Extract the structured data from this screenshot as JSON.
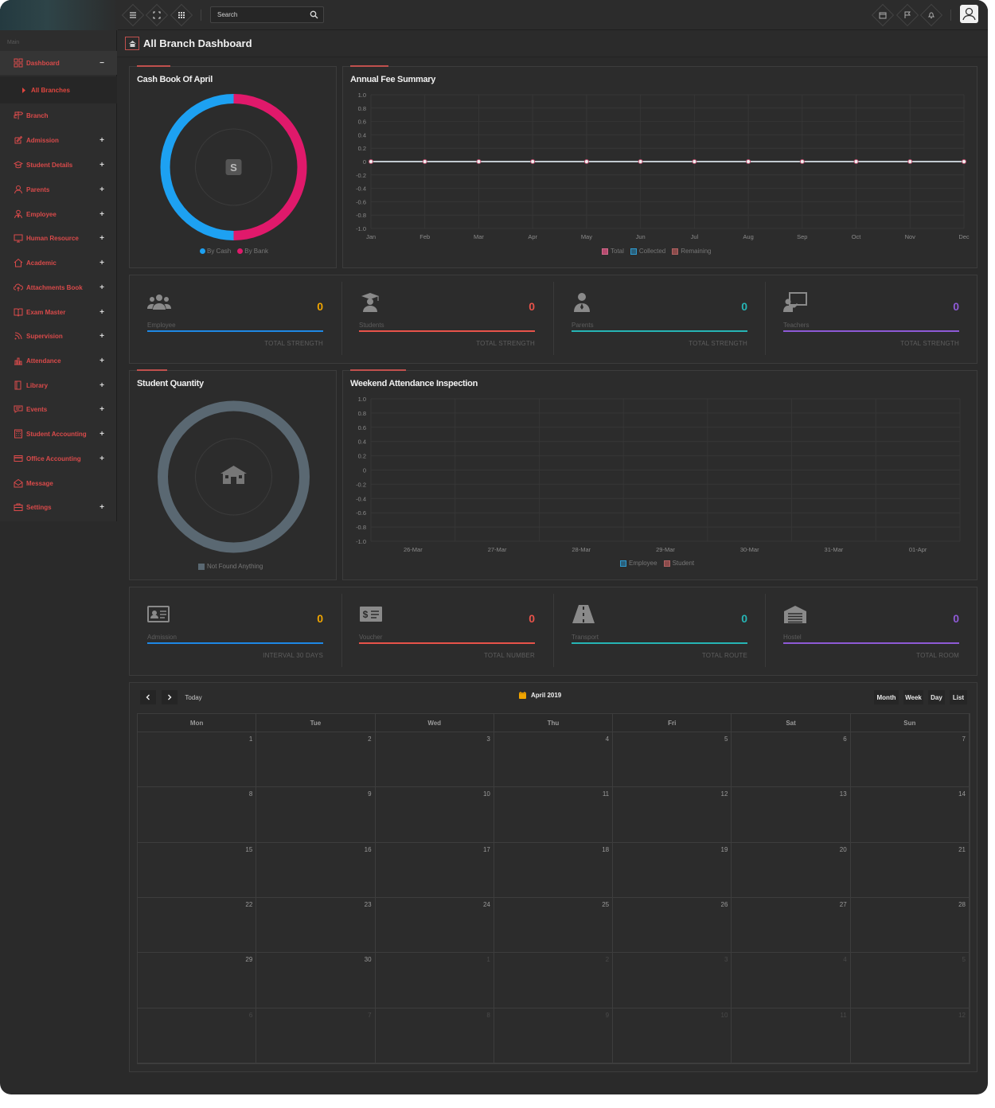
{
  "topbar": {
    "search_placeholder": "Search"
  },
  "sidebar": {
    "section_label": "Main",
    "items": [
      {
        "label": "Dashboard",
        "icon": "grid-icon",
        "toggle": "−"
      },
      {
        "label": "Branch",
        "icon": "signpost-icon",
        "toggle": ""
      },
      {
        "label": "Admission",
        "icon": "edit-icon",
        "toggle": "+"
      },
      {
        "label": "Student Details",
        "icon": "graduation-cap-icon",
        "toggle": "+"
      },
      {
        "label": "Parents",
        "icon": "user-icon",
        "toggle": "+"
      },
      {
        "label": "Employee",
        "icon": "user-tie-icon",
        "toggle": "+"
      },
      {
        "label": "Human Resource",
        "icon": "monitor-icon",
        "toggle": "+"
      },
      {
        "label": "Academic",
        "icon": "home-icon",
        "toggle": "+"
      },
      {
        "label": "Attachments Book",
        "icon": "cloud-upload-icon",
        "toggle": "+"
      },
      {
        "label": "Exam Master",
        "icon": "book-icon",
        "toggle": "+"
      },
      {
        "label": "Supervision",
        "icon": "rss-icon",
        "toggle": "+"
      },
      {
        "label": "Attendance",
        "icon": "bar-chart-icon",
        "toggle": "+"
      },
      {
        "label": "Library",
        "icon": "book-closed-icon",
        "toggle": "+"
      },
      {
        "label": "Events",
        "icon": "comment-icon",
        "toggle": "+"
      },
      {
        "label": "Student Accounting",
        "icon": "calculator-icon",
        "toggle": "+"
      },
      {
        "label": "Office Accounting",
        "icon": "credit-card-icon",
        "toggle": "+"
      },
      {
        "label": "Message",
        "icon": "envelope-open-icon",
        "toggle": ""
      },
      {
        "label": "Settings",
        "icon": "briefcase-icon",
        "toggle": "+"
      }
    ],
    "sub_active": "All Branches"
  },
  "page": {
    "title": "All Branch Dashboard"
  },
  "cashbook": {
    "title": "Cash Book Of April",
    "legend": [
      "By Cash",
      "By Bank"
    ],
    "colors": [
      "#1da1f2",
      "#e0196b"
    ]
  },
  "fee_summary": {
    "title": "Annual Fee Summary",
    "legend": [
      "Total",
      "Collected",
      "Remaining"
    ]
  },
  "stats_row1": [
    {
      "name": "Employee",
      "value": "0",
      "footer": "TOTAL STRENGTH",
      "color": "#f0a500",
      "bar": "#1e88e5"
    },
    {
      "name": "Students",
      "value": "0",
      "footer": "TOTAL STRENGTH",
      "color": "#e8534a",
      "bar": "#e8534a"
    },
    {
      "name": "Parents",
      "value": "0",
      "footer": "TOTAL STRENGTH",
      "color": "#26b5b5",
      "bar": "#26b5b5"
    },
    {
      "name": "Teachers",
      "value": "0",
      "footer": "TOTAL STRENGTH",
      "color": "#8e5ad6",
      "bar": "#8e5ad6"
    }
  ],
  "student_quantity": {
    "title": "Student Quantity",
    "legend": "Not Found Anything"
  },
  "weekend_attendance": {
    "title": "Weekend Attendance Inspection",
    "legend": [
      "Employee",
      "Student"
    ]
  },
  "stats_row2": [
    {
      "name": "Admission",
      "value": "0",
      "footer": "INTERVAL 30 DAYS",
      "color": "#f0a500",
      "bar": "#1e88e5"
    },
    {
      "name": "Voucher",
      "value": "0",
      "footer": "TOTAL NUMBER",
      "color": "#e8534a",
      "bar": "#e8534a"
    },
    {
      "name": "Transport",
      "value": "0",
      "footer": "TOTAL ROUTE",
      "color": "#26b5b5",
      "bar": "#26b5b5"
    },
    {
      "name": "Hostel",
      "value": "0",
      "footer": "TOTAL ROOM",
      "color": "#8e5ad6",
      "bar": "#8e5ad6"
    }
  ],
  "calendar": {
    "title": "April 2019",
    "today_label": "Today",
    "views": [
      "Month",
      "Week",
      "Day",
      "List"
    ],
    "weekdays": [
      "Mon",
      "Tue",
      "Wed",
      "Thu",
      "Fri",
      "Sat",
      "Sun"
    ],
    "weeks": [
      [
        "1",
        "2",
        "3",
        "4",
        "5",
        "6",
        "7"
      ],
      [
        "8",
        "9",
        "10",
        "11",
        "12",
        "13",
        "14"
      ],
      [
        "15",
        "16",
        "17",
        "18",
        "19",
        "20",
        "21"
      ],
      [
        "22",
        "23",
        "24",
        "25",
        "26",
        "27",
        "28"
      ],
      [
        "29",
        "30",
        "1",
        "2",
        "3",
        "4",
        "5"
      ],
      [
        "6",
        "7",
        "8",
        "9",
        "10",
        "11",
        "12"
      ]
    ]
  },
  "chart_data": [
    {
      "type": "pie",
      "title": "Cash Book Of April",
      "categories": [
        "By Cash",
        "By Bank"
      ],
      "values": [
        50,
        50
      ]
    },
    {
      "type": "line",
      "title": "Annual Fee Summary",
      "categories": [
        "Jan",
        "Feb",
        "Mar",
        "Apr",
        "May",
        "Jun",
        "Jul",
        "Aug",
        "Sep",
        "Oct",
        "Nov",
        "Dec"
      ],
      "series": [
        {
          "name": "Total",
          "values": [
            0,
            0,
            0,
            0,
            0,
            0,
            0,
            0,
            0,
            0,
            0,
            0
          ]
        },
        {
          "name": "Collected",
          "values": [
            0,
            0,
            0,
            0,
            0,
            0,
            0,
            0,
            0,
            0,
            0,
            0
          ]
        },
        {
          "name": "Remaining",
          "values": [
            0,
            0,
            0,
            0,
            0,
            0,
            0,
            0,
            0,
            0,
            0,
            0
          ]
        }
      ],
      "yticks": [
        "1.0",
        "0.8",
        "0.6",
        "0.4",
        "0.2",
        "0",
        "-0.2",
        "-0.4",
        "-0.6",
        "-0.8",
        "-1.0"
      ],
      "ylim": [
        -1,
        1
      ]
    },
    {
      "type": "pie",
      "title": "Student Quantity",
      "categories": [
        "Not Found Anything"
      ],
      "values": [
        1
      ]
    },
    {
      "type": "bar",
      "title": "Weekend Attendance Inspection",
      "categories": [
        "26-Mar",
        "27-Mar",
        "28-Mar",
        "29-Mar",
        "30-Mar",
        "31-Mar",
        "01-Apr"
      ],
      "series": [
        {
          "name": "Employee",
          "values": [
            0,
            0,
            0,
            0,
            0,
            0,
            0
          ]
        },
        {
          "name": "Student",
          "values": [
            0,
            0,
            0,
            0,
            0,
            0,
            0
          ]
        }
      ],
      "yticks": [
        "1.0",
        "0.8",
        "0.6",
        "0.4",
        "0.2",
        "0",
        "-0.2",
        "-0.4",
        "-0.6",
        "-0.8",
        "-1.0"
      ],
      "ylim": [
        -1,
        1
      ]
    }
  ]
}
